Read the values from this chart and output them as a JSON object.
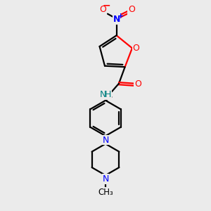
{
  "bg_color": "#ebebeb",
  "bond_color": "#000000",
  "nitrogen_color": "#0000ff",
  "oxygen_color": "#ff0000",
  "nh_color": "#008080",
  "line_width": 1.6,
  "fig_size": [
    3.0,
    3.0
  ],
  "dpi": 100,
  "xlim": [
    0,
    10
  ],
  "ylim": [
    0,
    10
  ]
}
